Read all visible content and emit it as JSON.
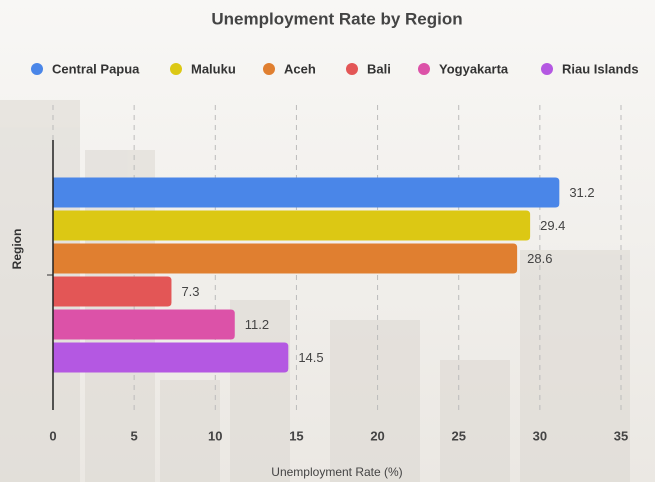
{
  "chart_data": {
    "type": "bar",
    "orientation": "horizontal",
    "title": "Unemployment Rate by Region",
    "x_label": "Unemployment Rate (%)",
    "y_label": "Region",
    "categories": [
      null
    ],
    "series": [
      {
        "name": "Central Papua",
        "color": "#4a86e8",
        "values": [
          31.2
        ]
      },
      {
        "name": "Maluku",
        "color": "#dcc814",
        "values": [
          29.4
        ]
      },
      {
        "name": "Aceh",
        "color": "#e07f30",
        "values": [
          28.6
        ]
      },
      {
        "name": "Bali",
        "color": "#e35656",
        "values": [
          7.3
        ]
      },
      {
        "name": "Yogyakarta",
        "color": "#dc52a8",
        "values": [
          11.2
        ]
      },
      {
        "name": "Riau Islands",
        "color": "#b458e2",
        "values": [
          14.5
        ]
      }
    ],
    "xlim": [
      0,
      35
    ],
    "xticks": [
      0,
      5,
      10,
      15,
      20,
      25,
      30,
      35
    ],
    "grid": true
  }
}
